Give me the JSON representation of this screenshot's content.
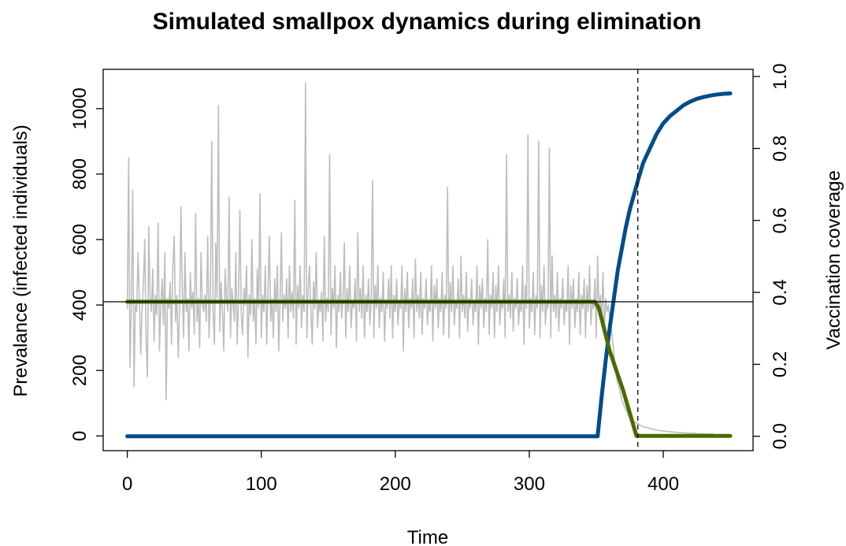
{
  "chart_data": {
    "type": "line",
    "title": "Simulated smallpox dynamics during elimination",
    "xlabel": "Time",
    "ylabel_left": "Prevalance (infected individuals)",
    "ylabel_right": "Vaccination coverage",
    "xlim": [
      -18,
      467
    ],
    "ylim_left": [
      -45,
      1120
    ],
    "ylim_right": [
      -0.04,
      1.02
    ],
    "x_ticks": [
      0,
      100,
      200,
      300,
      400
    ],
    "y_ticks_left": [
      0,
      200,
      400,
      600,
      800,
      1000
    ],
    "y_ticks_right": [
      0.0,
      0.2,
      0.4,
      0.6,
      0.8,
      1.0
    ],
    "x_tick_labels": [
      "0",
      "100",
      "200",
      "300",
      "400"
    ],
    "y_tick_labels_left": [
      "0",
      "200",
      "400",
      "600",
      "800",
      "1000"
    ],
    "y_tick_labels_right": [
      "0.0",
      "0.2",
      "0.4",
      "0.6",
      "0.8",
      "1.0"
    ],
    "grid": false,
    "annotations": {
      "horizontal_line_left_y": 410,
      "vertical_dashed_line_x": 381
    },
    "series": [
      {
        "axis": "left",
        "color": "#bebebe",
        "x_start": 0,
        "x_step": 1,
        "values": [
          390,
          850,
          210,
          400,
          750,
          150,
          400,
          380,
          560,
          420,
          250,
          390,
          460,
          600,
          300,
          180,
          640,
          420,
          380,
          510,
          290,
          430,
          370,
          650,
          260,
          400,
          480,
          340,
          560,
          110,
          420,
          390,
          470,
          280,
          520,
          610,
          350,
          430,
          240,
          390,
          700,
          450,
          300,
          560,
          380,
          420,
          260,
          500,
          390,
          440,
          310,
          680,
          350,
          420,
          270,
          560,
          400,
          380,
          430,
          350,
          610,
          300,
          420,
          900,
          380,
          280,
          590,
          420,
          1010,
          320,
          470,
          380,
          260,
          510,
          420,
          380,
          730,
          300,
          450,
          400,
          350,
          560,
          280,
          420,
          690,
          380,
          310,
          450,
          400,
          520,
          240,
          430,
          370,
          600,
          350,
          420,
          280,
          510,
          390,
          740,
          300,
          430,
          380,
          520,
          280,
          440,
          610,
          350,
          420,
          300,
          480,
          380,
          520,
          260,
          410,
          620,
          350,
          430,
          390,
          480,
          300,
          520,
          380,
          440,
          360,
          720,
          280,
          460,
          390,
          520,
          330,
          430,
          380,
          1080,
          300,
          450,
          520,
          380,
          280,
          470,
          390,
          560,
          330,
          410,
          380,
          440,
          290,
          610,
          350,
          420,
          380,
          860,
          310,
          450,
          390,
          520,
          270,
          430,
          380,
          500,
          360,
          420,
          590,
          300,
          450,
          380,
          520,
          330,
          410,
          390,
          480,
          290,
          620,
          380,
          450,
          360,
          520,
          300,
          430,
          380,
          480,
          340,
          410,
          780,
          300,
          460,
          390,
          520,
          330,
          420,
          380,
          500,
          290,
          410,
          390,
          480,
          360,
          520,
          300,
          430,
          380,
          480,
          340,
          410,
          390,
          520,
          260,
          450,
          380,
          500,
          330,
          420,
          390,
          480,
          300,
          540,
          380,
          430,
          360,
          500,
          310,
          420,
          390,
          480,
          340,
          410,
          380,
          520,
          290,
          460,
          390,
          480,
          330,
          420,
          380,
          500,
          310,
          430,
          390,
          760,
          300,
          470,
          380,
          520,
          340,
          410,
          390,
          480,
          300,
          550,
          380,
          430,
          360,
          500,
          320,
          420,
          390,
          480,
          340,
          410,
          380,
          520,
          280,
          460,
          390,
          480,
          330,
          420,
          380,
          600,
          310,
          430,
          390,
          500,
          300,
          460,
          380,
          520,
          340,
          410,
          390,
          480,
          300,
          860,
          380,
          430,
          360,
          500,
          320,
          420,
          390,
          480,
          340,
          410,
          380,
          520,
          280,
          460,
          390,
          920,
          330,
          420,
          380,
          500,
          310,
          430,
          390,
          900,
          300,
          460,
          380,
          520,
          340,
          410,
          390,
          880,
          300,
          550,
          380,
          430,
          360,
          500,
          320,
          420,
          390,
          480,
          340,
          410,
          380,
          520,
          280,
          460,
          390,
          480,
          330,
          420,
          380,
          500,
          310,
          430,
          390,
          480,
          300,
          460,
          380,
          520,
          340,
          410,
          390,
          480,
          300,
          550,
          380,
          430,
          360,
          500,
          320,
          420,
          380,
          400,
          360,
          330,
          300,
          260,
          220,
          180,
          160,
          150,
          130,
          110,
          100,
          90,
          80,
          75,
          60,
          70,
          55,
          50,
          45,
          40,
          42,
          38,
          35,
          32,
          30,
          28,
          27,
          26,
          25,
          24,
          23,
          22,
          21,
          20,
          19,
          18,
          17,
          17,
          16,
          16,
          15,
          15,
          14,
          14,
          13,
          13,
          12,
          12,
          12,
          11,
          11,
          11,
          10,
          10,
          10,
          10,
          9,
          9,
          9,
          9,
          8,
          8,
          8,
          8,
          8,
          7,
          7,
          7,
          7,
          7,
          7,
          6,
          6,
          6,
          6,
          6,
          6,
          6,
          5
        ]
      },
      {
        "axis": "right",
        "color": "#004c8a",
        "name": "",
        "x": [
          0,
          349,
          351,
          354,
          357,
          360,
          363,
          366,
          369,
          372,
          375,
          378,
          381,
          385,
          390,
          395,
          400,
          405,
          410,
          415,
          420,
          425,
          430,
          435,
          440,
          445,
          450
        ],
        "values": [
          0.0,
          0.0,
          0.0,
          0.11,
          0.21,
          0.3,
          0.38,
          0.46,
          0.52,
          0.58,
          0.63,
          0.67,
          0.71,
          0.76,
          0.8,
          0.84,
          0.87,
          0.89,
          0.905,
          0.92,
          0.93,
          0.938,
          0.943,
          0.947,
          0.95,
          0.952,
          0.953
        ]
      },
      {
        "axis": "left",
        "color": "#4a6b00",
        "name": "",
        "x": [
          0,
          349,
          352,
          360,
          370,
          380,
          450
        ],
        "values": [
          410,
          410,
          390,
          260,
          140,
          0,
          0
        ]
      }
    ]
  }
}
